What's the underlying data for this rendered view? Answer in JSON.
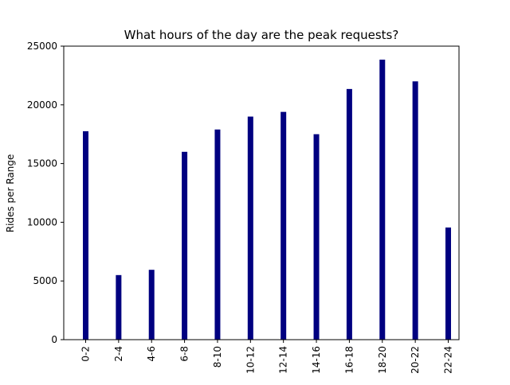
{
  "chart_data": {
    "type": "bar",
    "title": "What hours of the day are the peak requests?",
    "xlabel": "",
    "ylabel": "Rides per Range",
    "categories": [
      "0-2",
      "2-4",
      "4-6",
      "6-8",
      "8-10",
      "10-12",
      "12-14",
      "14-16",
      "16-18",
      "18-20",
      "20-22",
      "22-24"
    ],
    "values": [
      17750,
      5500,
      5950,
      16000,
      17900,
      19000,
      19400,
      17500,
      21350,
      23850,
      22000,
      9550
    ],
    "ylim": [
      0,
      25000
    ],
    "yticks": [
      0,
      5000,
      10000,
      15000,
      20000,
      25000
    ],
    "bar_color": "#000080",
    "grid": false
  }
}
